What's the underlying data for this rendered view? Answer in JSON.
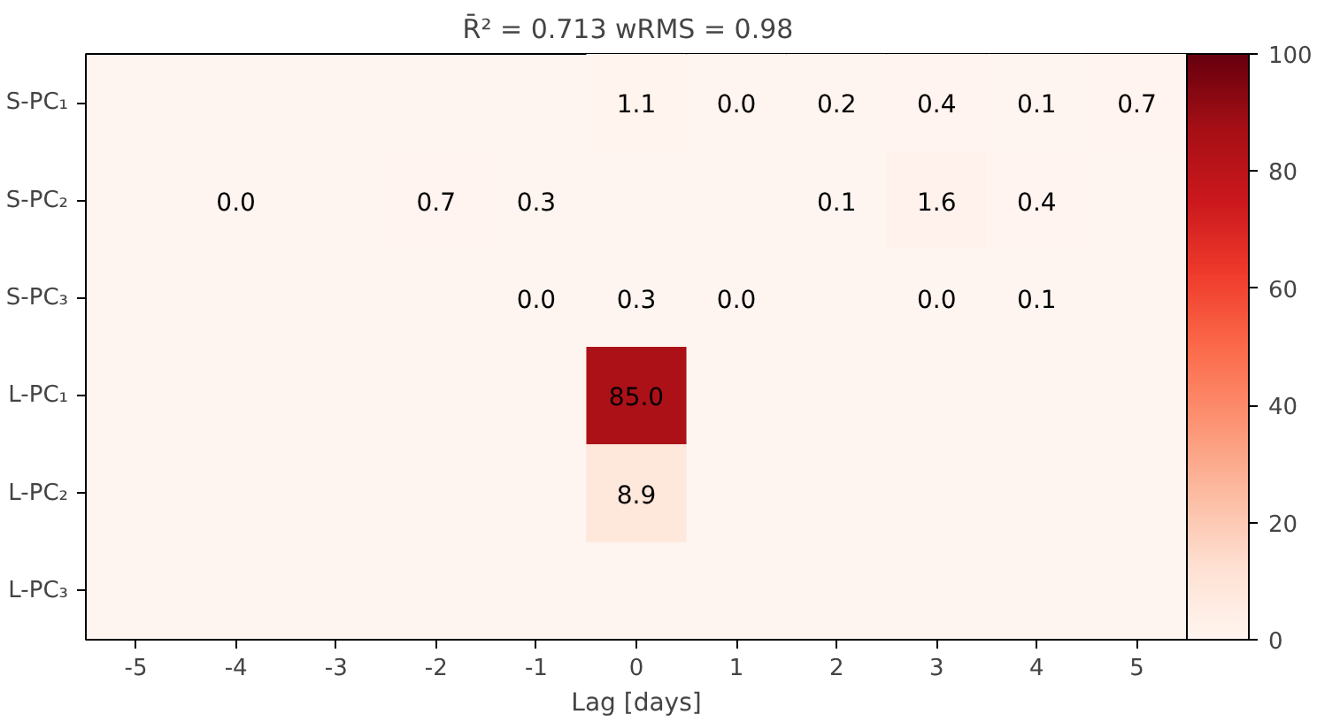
{
  "chart_data": {
    "type": "heatmap",
    "title": "R̄² = 0.713   wRMS = 0.98",
    "xlabel": "Lag [days]",
    "categories": [
      "-5",
      "-4",
      "-3",
      "-2",
      "-1",
      "0",
      "1",
      "2",
      "3",
      "4",
      "5"
    ],
    "y_categories": [
      "S-PC₁",
      "S-PC₂",
      "S-PC₃",
      "L-PC₁",
      "L-PC₂",
      "L-PC₃"
    ],
    "cells": [
      [
        null,
        null,
        null,
        null,
        null,
        1.1,
        0.0,
        0.2,
        0.4,
        0.1,
        0.7
      ],
      [
        null,
        0.0,
        null,
        0.7,
        0.3,
        null,
        null,
        0.1,
        1.6,
        0.4,
        null
      ],
      [
        null,
        null,
        null,
        null,
        0.0,
        0.3,
        0.0,
        null,
        0.0,
        0.1,
        null
      ],
      [
        null,
        null,
        null,
        null,
        null,
        85.0,
        null,
        null,
        null,
        null,
        null
      ],
      [
        null,
        null,
        null,
        null,
        null,
        8.9,
        null,
        null,
        null,
        null,
        null
      ],
      [
        null,
        null,
        null,
        null,
        null,
        null,
        null,
        null,
        null,
        null,
        null
      ]
    ],
    "cell_labels": [
      [
        null,
        null,
        null,
        null,
        null,
        "1.1",
        "0.0",
        "0.2",
        "0.4",
        "0.1",
        "0.7"
      ],
      [
        null,
        "0.0",
        null,
        "0.7",
        "0.3",
        null,
        null,
        "0.1",
        "1.6",
        "0.4",
        null
      ],
      [
        null,
        null,
        null,
        null,
        "0.0",
        "0.3",
        "0.0",
        null,
        "0.0",
        "0.1",
        null
      ],
      [
        null,
        null,
        null,
        null,
        null,
        "85.0",
        null,
        null,
        null,
        null,
        null
      ],
      [
        null,
        null,
        null,
        null,
        null,
        "8.9",
        null,
        null,
        null,
        null,
        null
      ],
      [
        null,
        null,
        null,
        null,
        null,
        null,
        null,
        null,
        null,
        null,
        null
      ]
    ],
    "clim": [
      0,
      100
    ],
    "cticks": [
      0,
      20,
      40,
      60,
      80,
      100
    ]
  }
}
